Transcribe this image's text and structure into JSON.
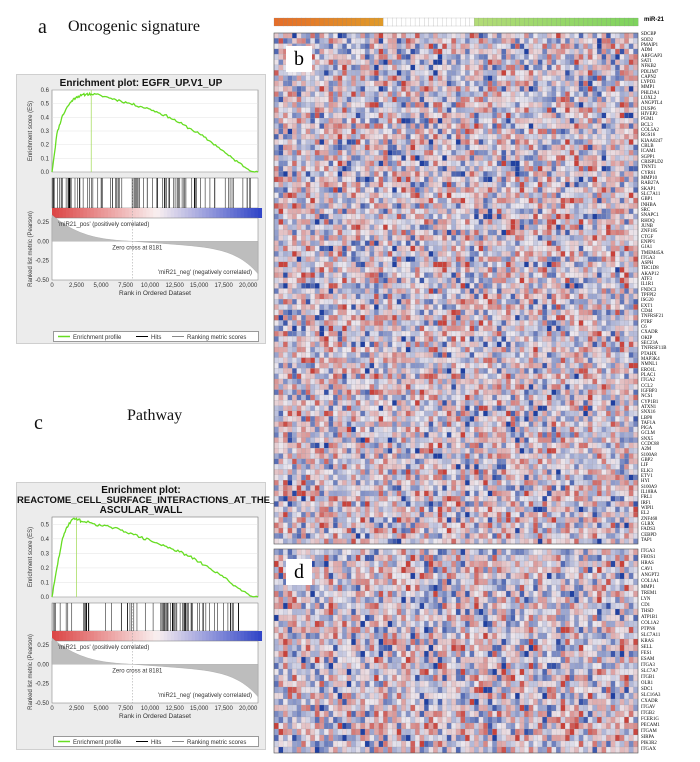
{
  "panels": {
    "a": {
      "letter": "a",
      "title": "Oncogenic signature"
    },
    "b": {
      "letter": "b"
    },
    "c": {
      "letter": "c",
      "title": "Pathway"
    },
    "d": {
      "letter": "d"
    }
  },
  "gsea_a": {
    "title": "Enrichment plot: EGFR_UP.V1_UP",
    "ylabel_es": "Enrichment score (ES)",
    "ylabel_rank": "Ranked list metric (Pearson)",
    "xlabel": "Rank in Ordered Dataset",
    "es_ticks": [
      "0.6",
      "0.5",
      "0.4",
      "0.3",
      "0.2",
      "0.1",
      "0.0"
    ],
    "metric_ticks": [
      "0.25",
      "0.00",
      "-0.25",
      "-0.50"
    ],
    "x_ticks": [
      "0",
      "2,500",
      "5,000",
      "7,500",
      "10,000",
      "12,500",
      "15,000",
      "17,500",
      "20,000"
    ],
    "pos_label": "'miR21_pos' (positively correlated)",
    "neg_label": "'miR21_neg' (negatively correlated)",
    "zero_cross": "Zero cross at 8181",
    "legend": [
      "Enrichment profile",
      "Hits",
      "Ranking metric scores"
    ]
  },
  "gsea_c": {
    "title_line1": "Enrichment plot:",
    "title_line2": "REACTOME_CELL_SURFACE_INTERACTIONS_AT_THE_V",
    "title_line3": "ASCULAR_WALL",
    "ylabel_es": "Enrichment score (ES)",
    "ylabel_rank": "Ranked list metric (Pearson)",
    "xlabel": "Rank in Ordered Dataset",
    "es_ticks": [
      "0.5",
      "0.4",
      "0.3",
      "0.2",
      "0.1",
      "0.0"
    ],
    "metric_ticks": [
      "0.25",
      "0.00",
      "-0.25",
      "-0.50"
    ],
    "x_ticks": [
      "0",
      "2,500",
      "5,000",
      "7,500",
      "10,000",
      "12,500",
      "15,000",
      "17,500",
      "20,000"
    ],
    "pos_label": "'miR21_pos' (positively correlated)",
    "neg_label": "'miR21_neg' (negatively correlated)",
    "zero_cross": "Zero cross at 8181",
    "legend": [
      "Enrichment profile",
      "Hits",
      "Ranking metric scores"
    ]
  },
  "chart_data": [
    {
      "type": "line",
      "title": "Enrichment plot: EGFR_UP.V1_UP",
      "xlabel": "Rank in Ordered Dataset",
      "ylabel": "Enrichment score (ES)",
      "x": [
        0,
        500,
        1000,
        1500,
        2000,
        2500,
        3000,
        3500,
        4000,
        5000,
        6000,
        7000,
        8000,
        9000,
        10000,
        11000,
        12000,
        13000,
        14000,
        15000,
        16000,
        17000,
        18000,
        19000,
        20000,
        21000
      ],
      "series": [
        {
          "name": "Enrichment profile",
          "values": [
            0,
            0.28,
            0.4,
            0.47,
            0.52,
            0.55,
            0.56,
            0.57,
            0.57,
            0.56,
            0.54,
            0.52,
            0.5,
            0.48,
            0.46,
            0.43,
            0.4,
            0.36,
            0.32,
            0.28,
            0.23,
            0.18,
            0.12,
            0.07,
            0.02,
            0.0
          ]
        }
      ],
      "ylim": [
        0,
        0.6
      ],
      "xlim": [
        0,
        21000
      ],
      "peak_rank": 4000
    },
    {
      "type": "line",
      "title": "Enrichment plot: REACTOME_CELL_SURFACE_INTERACTIONS_AT_THE_VASCULAR_WALL",
      "xlabel": "Rank in Ordered Dataset",
      "ylabel": "Enrichment score (ES)",
      "x": [
        0,
        500,
        1000,
        1500,
        2000,
        2500,
        3000,
        4000,
        5000,
        6000,
        7000,
        8000,
        9000,
        10000,
        11000,
        12000,
        13000,
        14000,
        15000,
        16000,
        17000,
        18000,
        19000,
        20000,
        21000
      ],
      "series": [
        {
          "name": "Enrichment profile",
          "values": [
            0,
            0.2,
            0.38,
            0.48,
            0.53,
            0.54,
            0.52,
            0.51,
            0.49,
            0.48,
            0.46,
            0.44,
            0.41,
            0.39,
            0.36,
            0.34,
            0.31,
            0.28,
            0.24,
            0.2,
            0.16,
            0.11,
            0.06,
            0.02,
            0.0
          ]
        }
      ],
      "ylim": [
        0,
        0.55
      ],
      "xlim": [
        0,
        21000
      ],
      "peak_rank": 2500
    },
    {
      "type": "heatmap",
      "title": "b",
      "column_annotation": "miR-21",
      "colors": {
        "high": "#c8413a",
        "low": "#2040a0",
        "mid": "#e8e8ee"
      },
      "rows": [
        "SDCBP",
        "SOD2",
        "PMAIP1",
        "ADM",
        "ARFGAP3",
        "SAT1",
        "NFKB2",
        "PDLIM7",
        "CAPN2",
        "LYPD3",
        "MMP1",
        "PHLDA1",
        "LOXL2",
        "ANGPTL4",
        "DUSP6",
        "HIVEP2",
        "PGM1",
        "BCL3",
        "COL5A2",
        "RGS16",
        "KIAA0247",
        "CBLB",
        "ICAM1",
        "SGPP1",
        "CRISPLD2",
        "TNNT1",
        "CYR61",
        "MMP10",
        "RAB27A",
        "SKAP1",
        "SLC7A11",
        "GBP1",
        "INHBA",
        "SRC",
        "SNAPC1",
        "RHOQ",
        "JUNB",
        "ZNF185",
        "CTGF",
        "ENPP1",
        "GJA1",
        "TMEM45A",
        "ITGA3",
        "ASPH",
        "TBC1D8",
        "AKAP12",
        "ATF3",
        "IL1R1",
        "FNDC3",
        "TPFPI2",
        "ISG20",
        "EXT1",
        "CD44",
        "TNFRSF21",
        "PTRF",
        "C6",
        "CXADR",
        "OKIP",
        "SEC23A",
        "TNFRSF11B",
        "PTAHX",
        "MAP3K4",
        "NMNL1",
        "ERO1L",
        "PLAC1",
        "ITGA2",
        "CCL2",
        "IGFBP3",
        "NCS1",
        "CYP1B1",
        "ATXN1",
        "SNX16",
        "LBP8",
        "TAF1A",
        "PIGA",
        "GCLM",
        "SNX5",
        "CCDC88",
        "A2M",
        "S100A8",
        "GBP2",
        "LIF",
        "ELK3",
        "ETV1",
        "HYI",
        "S100A9",
        "IL18RA",
        "FRL1",
        "IRF1",
        "WIPI1",
        "EL2",
        "ZNF468",
        "GLRX",
        "FADS3",
        "CEBPD",
        "TAP1"
      ]
    },
    {
      "type": "heatmap",
      "title": "d",
      "colors": {
        "high": "#c8413a",
        "low": "#2040a0",
        "mid": "#e8e8ee"
      },
      "rows": [
        "ITGA3",
        "FBOS1",
        "HRAS",
        "CAV1",
        "ANGPT2",
        "COL1A1",
        "MMP1",
        "TREM1",
        "LYN",
        "CD1",
        "THSD",
        "ATP1B1",
        "COL1A2",
        "PTPN6",
        "SLC7A11",
        "KRAS",
        "SELL",
        "FES1",
        "ESAM",
        "ITGA3",
        "SLC7A7",
        "ITGB1",
        "OLR1",
        "SDC1",
        "SLC16A3",
        "CXADR",
        "ITGAV",
        "ITGB2",
        "FCER1G",
        "PECAM1",
        "ITGAM",
        "SIRPA",
        "PIK3R2",
        "ITGAX"
      ]
    }
  ]
}
